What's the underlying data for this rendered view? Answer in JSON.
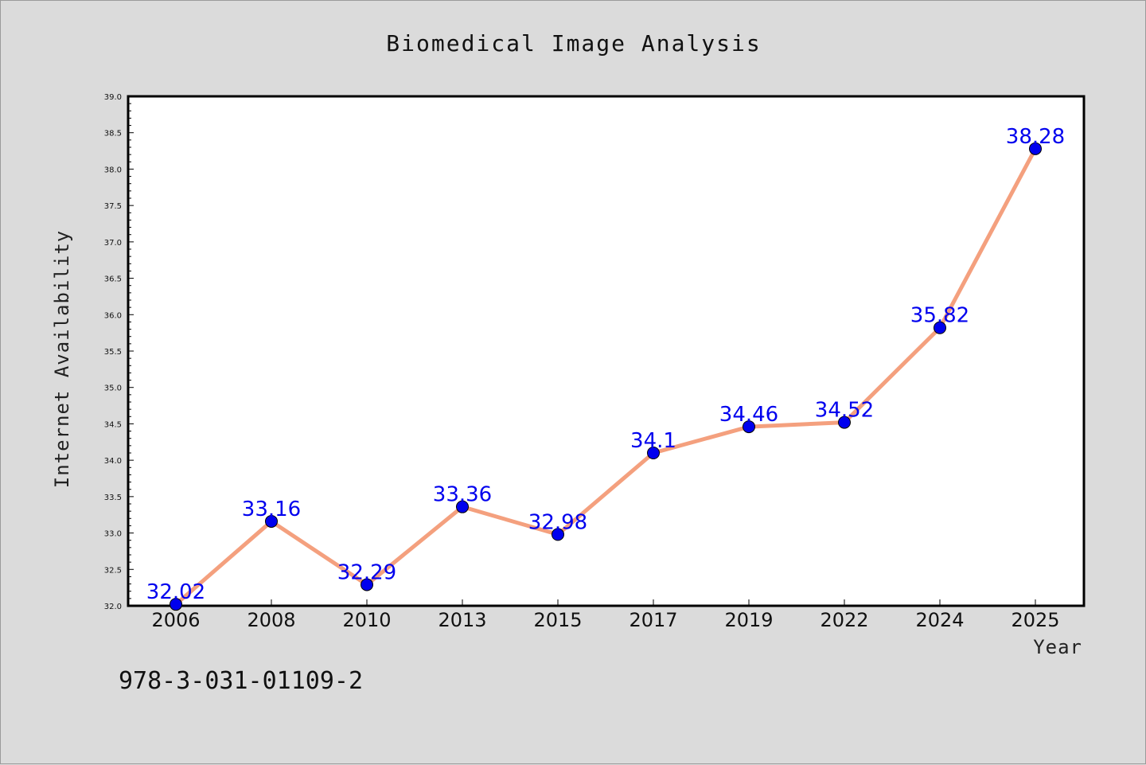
{
  "chart_data": {
    "type": "line",
    "title": "Biomedical Image Analysis",
    "xlabel": "Year",
    "ylabel": "Internet Availability",
    "categories": [
      "2006",
      "2008",
      "2010",
      "2013",
      "2015",
      "2017",
      "2019",
      "2022",
      "2024",
      "2025"
    ],
    "series": [
      {
        "values": [
          32.02,
          33.16,
          32.29,
          33.36,
          32.98,
          34.1,
          34.46,
          34.52,
          35.82,
          38.28
        ],
        "data_labels": [
          "32.02",
          "33.16",
          "32.29",
          "33.36",
          "32.98",
          "34.1",
          "34.46",
          "34.52",
          "35.82",
          "38.28"
        ],
        "line_color": "#f4a07e",
        "marker_color": "#0000ee"
      }
    ],
    "ylim": [
      32.0,
      39.0
    ],
    "yticks": [
      "32.0",
      "32.5",
      "33.0",
      "33.5",
      "34.0",
      "34.5",
      "35.0",
      "35.5",
      "36.0",
      "36.5",
      "37.0",
      "37.5",
      "38.0",
      "38.5",
      "39.0"
    ],
    "grid": false,
    "legend": "none"
  },
  "footnote": "978-3-031-01109-2"
}
